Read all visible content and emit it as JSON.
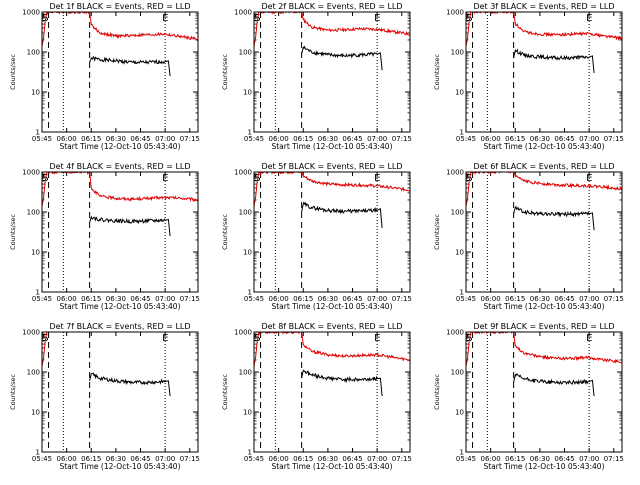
{
  "colors": {
    "events": "#000000",
    "lld": "#e00000",
    "axes": "#000000",
    "background": "#ffffff"
  },
  "chart_data": [
    {
      "type": "line",
      "title": "Det 1f BLACK = Events, RED = LLD",
      "xlabel": "Start Time (12-Oct-10 05:43:40)",
      "ylabel": "Counts/sec",
      "xlim": [
        "05:45",
        "07:20"
      ],
      "ylim": [
        1,
        1000
      ],
      "yscale": "log",
      "xticks": [
        "05:45",
        "06:00",
        "06:15",
        "06:30",
        "06:45",
        "07:00",
        "07:15"
      ],
      "yticks": [
        "1",
        "10",
        "100",
        "1000"
      ],
      "markers": [
        {
          "label": "E",
          "time": "05:46"
        },
        {
          "label": "S",
          "time": "05:47"
        },
        {
          "label": "E",
          "time": "07:00"
        }
      ],
      "dashed_lines": [
        "05:49",
        "06:14"
      ],
      "dotted_lines": [
        "05:58",
        "07:00"
      ],
      "series": [
        {
          "name": "Events",
          "color": "#000000",
          "x": [
            "06:14",
            "06:15",
            "06:20",
            "06:30",
            "06:40",
            "06:50",
            "07:00",
            "07:02",
            "07:03"
          ],
          "y": [
            55,
            70,
            65,
            60,
            55,
            55,
            58,
            60,
            25
          ]
        },
        {
          "name": "LLD",
          "color": "#e00000",
          "x": [
            "05:45",
            "05:46",
            "05:47",
            "05:48",
            "06:14",
            "06:15",
            "06:20",
            "06:30",
            "06:40",
            "06:50",
            "07:00",
            "07:10",
            "07:20"
          ],
          "y": [
            140,
            230,
            600,
            1000,
            1000,
            480,
            300,
            250,
            260,
            270,
            280,
            240,
            210
          ]
        }
      ]
    },
    {
      "type": "line",
      "title": "Det 2f BLACK = Events, RED = LLD",
      "xlabel": "Start Time (12-Oct-10 05:43:40)",
      "ylabel": "Counts/sec",
      "xlim": [
        "05:45",
        "07:20"
      ],
      "ylim": [
        1,
        1000
      ],
      "yscale": "log",
      "xticks": [
        "05:45",
        "06:00",
        "06:15",
        "06:30",
        "06:45",
        "07:00",
        "07:15"
      ],
      "yticks": [
        "1",
        "10",
        "100",
        "1000"
      ],
      "markers": [
        {
          "label": "E",
          "time": "05:46"
        },
        {
          "label": "S",
          "time": "05:47"
        },
        {
          "label": "E",
          "time": "07:00"
        }
      ],
      "dashed_lines": [
        "05:49",
        "06:14"
      ],
      "dotted_lines": [
        "05:58",
        "07:00"
      ],
      "series": [
        {
          "name": "Events",
          "color": "#000000",
          "x": [
            "06:14",
            "06:15",
            "06:20",
            "06:30",
            "06:40",
            "06:50",
            "07:00",
            "07:02",
            "07:03"
          ],
          "y": [
            90,
            130,
            100,
            85,
            80,
            85,
            88,
            95,
            35
          ]
        },
        {
          "name": "LLD",
          "color": "#e00000",
          "x": [
            "05:45",
            "05:46",
            "05:47",
            "05:48",
            "06:14",
            "06:15",
            "06:20",
            "06:30",
            "06:40",
            "06:50",
            "07:00",
            "07:10",
            "07:20"
          ],
          "y": [
            140,
            230,
            600,
            1000,
            1000,
            650,
            420,
            350,
            360,
            380,
            370,
            320,
            280
          ]
        }
      ]
    },
    {
      "type": "line",
      "title": "Det 3f BLACK = Events, RED = LLD",
      "xlabel": "Start Time (12-Oct-10 05:43:40)",
      "ylabel": "Counts/sec",
      "xlim": [
        "05:45",
        "07:20"
      ],
      "ylim": [
        1,
        1000
      ],
      "yscale": "log",
      "xticks": [
        "05:45",
        "06:00",
        "06:15",
        "06:30",
        "06:45",
        "07:00",
        "07:15"
      ],
      "yticks": [
        "1",
        "10",
        "100",
        "1000"
      ],
      "markers": [
        {
          "label": "E",
          "time": "05:46"
        },
        {
          "label": "S",
          "time": "05:47"
        },
        {
          "label": "E",
          "time": "07:00"
        }
      ],
      "dashed_lines": [
        "05:49",
        "06:14"
      ],
      "dotted_lines": [
        "05:58",
        "07:00"
      ],
      "series": [
        {
          "name": "Events",
          "color": "#000000",
          "x": [
            "06:14",
            "06:15",
            "06:20",
            "06:30",
            "06:40",
            "06:50",
            "07:00",
            "07:02",
            "07:03"
          ],
          "y": [
            70,
            110,
            85,
            75,
            70,
            72,
            75,
            80,
            30
          ]
        },
        {
          "name": "LLD",
          "color": "#e00000",
          "x": [
            "05:45",
            "05:46",
            "05:47",
            "05:48",
            "06:14",
            "06:15",
            "06:20",
            "06:30",
            "06:40",
            "06:50",
            "07:00",
            "07:10",
            "07:20"
          ],
          "y": [
            140,
            230,
            600,
            1000,
            1000,
            520,
            320,
            280,
            270,
            280,
            290,
            250,
            220
          ]
        }
      ]
    },
    {
      "type": "line",
      "title": "Det 4f BLACK = Events, RED = LLD",
      "xlabel": "Start Time (12-Oct-10 05:43:40)",
      "ylabel": "Counts/sec",
      "xlim": [
        "05:45",
        "07:20"
      ],
      "ylim": [
        1,
        1000
      ],
      "yscale": "log",
      "xticks": [
        "05:45",
        "06:00",
        "06:15",
        "06:30",
        "06:45",
        "07:00",
        "07:15"
      ],
      "yticks": [
        "1",
        "10",
        "100",
        "1000"
      ],
      "markers": [
        {
          "label": "E",
          "time": "05:46"
        },
        {
          "label": "S",
          "time": "05:47"
        },
        {
          "label": "E",
          "time": "07:00"
        }
      ],
      "dashed_lines": [
        "05:49",
        "06:14"
      ],
      "dotted_lines": [
        "05:58",
        "07:00"
      ],
      "series": [
        {
          "name": "Events",
          "color": "#000000",
          "x": [
            "06:14",
            "06:15",
            "06:20",
            "06:30",
            "06:40",
            "06:50",
            "07:00",
            "07:02",
            "07:03"
          ],
          "y": [
            55,
            75,
            65,
            60,
            58,
            60,
            62,
            65,
            25
          ]
        },
        {
          "name": "LLD",
          "color": "#e00000",
          "x": [
            "05:45",
            "05:46",
            "05:47",
            "05:48",
            "06:14",
            "06:15",
            "06:20",
            "06:30",
            "06:40",
            "06:50",
            "07:00",
            "07:10",
            "07:20"
          ],
          "y": [
            140,
            230,
            600,
            1000,
            1000,
            400,
            250,
            220,
            210,
            220,
            230,
            220,
            200
          ]
        }
      ]
    },
    {
      "type": "line",
      "title": "Det 5f BLACK = Events, RED = LLD",
      "xlabel": "Start Time (12-Oct-10 05:43:40)",
      "ylabel": "Counts/sec",
      "xlim": [
        "05:45",
        "07:20"
      ],
      "ylim": [
        1,
        1000
      ],
      "yscale": "log",
      "xticks": [
        "05:45",
        "06:00",
        "06:15",
        "06:30",
        "06:45",
        "07:00",
        "07:15"
      ],
      "yticks": [
        "1",
        "10",
        "100",
        "1000"
      ],
      "markers": [
        {
          "label": "E",
          "time": "05:46"
        },
        {
          "label": "S",
          "time": "05:47"
        },
        {
          "label": "E",
          "time": "07:00"
        }
      ],
      "dashed_lines": [
        "05:49",
        "06:14"
      ],
      "dotted_lines": [
        "05:58",
        "07:00"
      ],
      "series": [
        {
          "name": "Events",
          "color": "#000000",
          "x": [
            "06:14",
            "06:15",
            "06:20",
            "06:30",
            "06:40",
            "06:50",
            "07:00",
            "07:02",
            "07:03"
          ],
          "y": [
            100,
            160,
            130,
            110,
            105,
            105,
            110,
            120,
            40
          ]
        },
        {
          "name": "LLD",
          "color": "#e00000",
          "x": [
            "05:45",
            "05:46",
            "05:47",
            "05:48",
            "06:14",
            "06:15",
            "06:20",
            "06:30",
            "06:40",
            "06:50",
            "07:00",
            "07:10",
            "07:20"
          ],
          "y": [
            140,
            230,
            600,
            1000,
            1000,
            800,
            600,
            500,
            480,
            470,
            450,
            400,
            350
          ]
        }
      ]
    },
    {
      "type": "line",
      "title": "Det 6f BLACK = Events, RED = LLD",
      "xlabel": "Start Time (12-Oct-10 05:43:40)",
      "ylabel": "Counts/sec",
      "xlim": [
        "05:45",
        "07:20"
      ],
      "ylim": [
        1,
        1000
      ],
      "yscale": "log",
      "xticks": [
        "05:45",
        "06:00",
        "06:15",
        "06:30",
        "06:45",
        "07:00",
        "07:15"
      ],
      "yticks": [
        "1",
        "10",
        "100",
        "1000"
      ],
      "markers": [
        {
          "label": "E",
          "time": "05:46"
        },
        {
          "label": "S",
          "time": "05:47"
        },
        {
          "label": "E",
          "time": "07:00"
        }
      ],
      "dashed_lines": [
        "05:49",
        "06:14"
      ],
      "dotted_lines": [
        "05:58",
        "07:00"
      ],
      "series": [
        {
          "name": "Events",
          "color": "#000000",
          "x": [
            "06:14",
            "06:15",
            "06:20",
            "06:30",
            "06:40",
            "06:50",
            "07:00",
            "07:02",
            "07:03"
          ],
          "y": [
            90,
            130,
            100,
            90,
            88,
            88,
            90,
            95,
            35
          ]
        },
        {
          "name": "LLD",
          "color": "#e00000",
          "x": [
            "05:45",
            "05:46",
            "05:47",
            "05:48",
            "06:14",
            "06:15",
            "06:20",
            "06:30",
            "06:40",
            "06:50",
            "07:00",
            "07:10",
            "07:20"
          ],
          "y": [
            140,
            230,
            600,
            1000,
            1000,
            800,
            600,
            520,
            480,
            460,
            450,
            420,
            380
          ]
        }
      ]
    },
    {
      "type": "line",
      "title": "Det 7f BLACK = Events, RED = LLD",
      "xlabel": "Start Time (12-Oct-10 05:43:40)",
      "ylabel": "Counts/sec",
      "xlim": [
        "05:45",
        "07:20"
      ],
      "ylim": [
        1,
        1000
      ],
      "yscale": "log",
      "xticks": [
        "05:45",
        "06:00",
        "06:15",
        "06:30",
        "06:45",
        "07:00",
        "07:15"
      ],
      "yticks": [
        "1",
        "10",
        "100",
        "1000"
      ],
      "markers": [
        {
          "label": "E",
          "time": "05:46"
        },
        {
          "label": "S",
          "time": "05:47"
        },
        {
          "label": "E",
          "time": "07:00"
        }
      ],
      "dashed_lines": [
        "05:49",
        "06:14"
      ],
      "dotted_lines": [
        "05:58",
        "07:00"
      ],
      "series": [
        {
          "name": "Events",
          "color": "#000000",
          "x": [
            "06:14",
            "06:15",
            "06:20",
            "06:30",
            "06:40",
            "06:50",
            "07:00",
            "07:02",
            "07:03"
          ],
          "y": [
            60,
            90,
            70,
            60,
            55,
            55,
            58,
            60,
            25
          ]
        },
        {
          "name": "LLD",
          "color": "#e00000",
          "x": [
            "05:45",
            "05:46",
            "05:47",
            "05:48"
          ],
          "y": [
            140,
            230,
            600,
            1000
          ]
        }
      ]
    },
    {
      "type": "line",
      "title": "Det 8f BLACK = Events, RED = LLD",
      "xlabel": "Start Time (12-Oct-10 05:43:40)",
      "ylabel": "Counts/sec",
      "xlim": [
        "05:45",
        "07:20"
      ],
      "ylim": [
        1,
        1000
      ],
      "yscale": "log",
      "xticks": [
        "05:45",
        "06:00",
        "06:15",
        "06:30",
        "06:45",
        "07:00",
        "07:15"
      ],
      "yticks": [
        "1",
        "10",
        "100",
        "1000"
      ],
      "markers": [
        {
          "label": "E",
          "time": "05:46"
        },
        {
          "label": "S",
          "time": "05:47"
        },
        {
          "label": "E",
          "time": "07:00"
        }
      ],
      "dashed_lines": [
        "05:49",
        "06:14"
      ],
      "dotted_lines": [
        "05:58",
        "07:00"
      ],
      "series": [
        {
          "name": "Events",
          "color": "#000000",
          "x": [
            "06:14",
            "06:15",
            "06:20",
            "06:30",
            "06:40",
            "06:50",
            "07:00",
            "07:02",
            "07:03"
          ],
          "y": [
            70,
            110,
            85,
            70,
            65,
            65,
            68,
            70,
            25
          ]
        },
        {
          "name": "LLD",
          "color": "#e00000",
          "x": [
            "05:45",
            "05:46",
            "05:47",
            "05:48",
            "06:14",
            "06:15",
            "06:20",
            "06:30",
            "06:40",
            "06:50",
            "07:00",
            "07:10",
            "07:20"
          ],
          "y": [
            140,
            230,
            600,
            1000,
            1000,
            480,
            330,
            270,
            250,
            260,
            270,
            230,
            200
          ]
        }
      ]
    },
    {
      "type": "line",
      "title": "Det 9f BLACK = Events, RED = LLD",
      "xlabel": "Start Time (12-Oct-10 05:43:40)",
      "ylabel": "Counts/sec",
      "xlim": [
        "05:45",
        "07:20"
      ],
      "ylim": [
        1,
        1000
      ],
      "yscale": "log",
      "xticks": [
        "05:45",
        "06:00",
        "06:15",
        "06:30",
        "06:45",
        "07:00",
        "07:15"
      ],
      "yticks": [
        "1",
        "10",
        "100",
        "1000"
      ],
      "markers": [
        {
          "label": "E",
          "time": "05:46"
        },
        {
          "label": "S",
          "time": "05:47"
        },
        {
          "label": "E",
          "time": "07:00"
        }
      ],
      "dashed_lines": [
        "05:49",
        "06:14"
      ],
      "dotted_lines": [
        "05:58",
        "07:00"
      ],
      "series": [
        {
          "name": "Events",
          "color": "#000000",
          "x": [
            "06:14",
            "06:15",
            "06:20",
            "06:30",
            "06:40",
            "06:50",
            "07:00",
            "07:02",
            "07:03"
          ],
          "y": [
            55,
            85,
            68,
            58,
            55,
            55,
            58,
            62,
            25
          ]
        },
        {
          "name": "LLD",
          "color": "#e00000",
          "x": [
            "05:45",
            "05:46",
            "05:47",
            "05:48",
            "06:14",
            "06:15",
            "06:20",
            "06:30",
            "06:40",
            "06:50",
            "07:00",
            "07:10",
            "07:20"
          ],
          "y": [
            140,
            230,
            600,
            1000,
            1000,
            450,
            300,
            240,
            220,
            220,
            230,
            200,
            180
          ]
        }
      ]
    }
  ]
}
